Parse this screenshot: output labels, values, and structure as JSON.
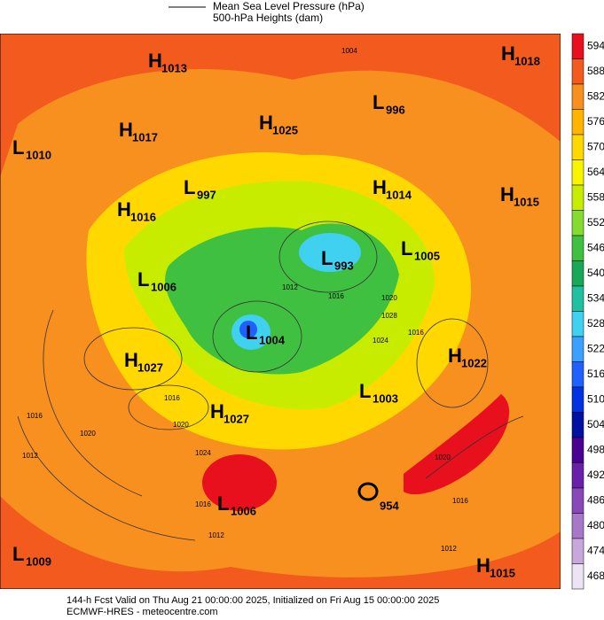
{
  "legend": {
    "mslp": "Mean Sea Level Pressure (hPa)",
    "heights": "500-hPa Heights (dam)"
  },
  "colorbar": {
    "labels": [
      594,
      588,
      582,
      576,
      570,
      564,
      558,
      552,
      546,
      540,
      534,
      528,
      522,
      516,
      510,
      504,
      498,
      492,
      486,
      480,
      474,
      468
    ],
    "colors": [
      "#e8101c",
      "#f25a1e",
      "#f7901e",
      "#ffb400",
      "#ffd800",
      "#f8f400",
      "#c8ec00",
      "#84dc30",
      "#40c040",
      "#18a858",
      "#20c0a0",
      "#40d0f0",
      "#3ca0ff",
      "#2060ff",
      "#0030e0",
      "#0010a0",
      "#4a0090",
      "#6a20a8",
      "#8848b8",
      "#a878c8",
      "#c8a8dc",
      "#ece4f4"
    ]
  },
  "centers": [
    {
      "letter": "H",
      "value": 1013
    },
    {
      "letter": "H",
      "value": 1018
    },
    {
      "letter": "L",
      "value": 996
    },
    {
      "letter": "H",
      "value": 1017
    },
    {
      "letter": "H",
      "value": 1025
    },
    {
      "letter": "L",
      "value": 1010
    },
    {
      "letter": "L",
      "value": 997
    },
    {
      "letter": "H",
      "value": 1014
    },
    {
      "letter": "H",
      "value": 1015
    },
    {
      "letter": "H",
      "value": 1016
    },
    {
      "letter": "L",
      "value": 993
    },
    {
      "letter": "L",
      "value": 1005
    },
    {
      "letter": "L",
      "value": 1006
    },
    {
      "letter": "L",
      "value": 1004
    },
    {
      "letter": "H",
      "value": 1027
    },
    {
      "letter": "H",
      "value": 1022
    },
    {
      "letter": "L",
      "value": 1003
    },
    {
      "letter": "H",
      "value": 1027
    },
    {
      "letter": "L",
      "value": 1006
    },
    {
      "letter": "L",
      "value": 1009
    },
    {
      "letter": "H",
      "value": 1015
    }
  ],
  "storm_label": 954,
  "contour_labels": [
    1004,
    1028,
    1016,
    1020,
    1016,
    1012,
    1016,
    1020,
    1016,
    1020,
    1012,
    1024,
    1016,
    1012,
    1012,
    1016,
    1020,
    1024
  ],
  "footer": {
    "line1": "144-h Fcst Valid on Thu Aug 21 00:00:00 2025, Initialized on Fri Aug 15 00:00:00 2025",
    "line2": "ECMWF-HRES   - meteocentre.com"
  }
}
